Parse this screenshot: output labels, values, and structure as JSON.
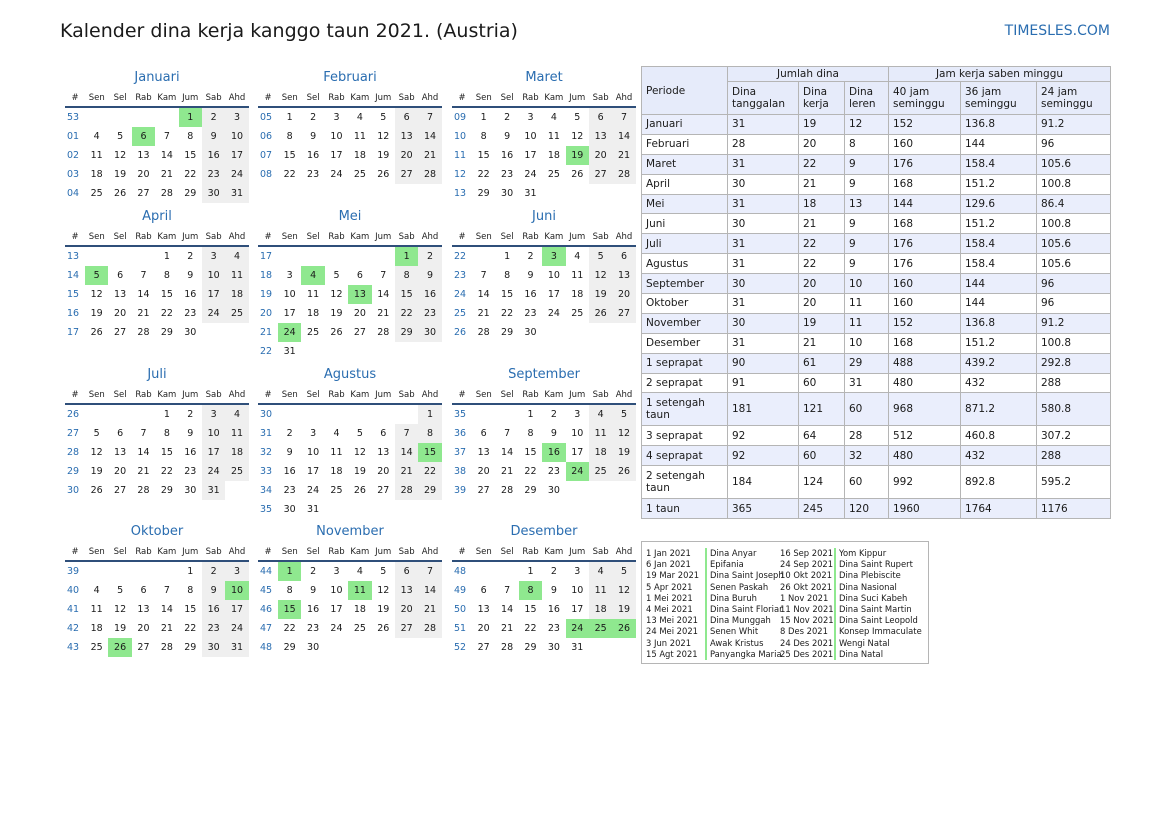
{
  "title": "Kalender dina kerja kanggo taun 2021. (Austria)",
  "brand": "TIMESLES.COM",
  "dow": [
    "#",
    "Sen",
    "Sel",
    "Rab",
    "Kam",
    "Jum",
    "Sab",
    "Ahd"
  ],
  "colors": {
    "holiday": "#8fe88f",
    "weekend": "#efefef",
    "accent": "#2a6db0"
  },
  "months": [
    {
      "name": "Januari",
      "weeks": [
        {
          "wk": "53",
          "days": [
            "",
            "",
            "",
            "",
            "1",
            "2",
            "3"
          ],
          "hol": [
            4
          ]
        },
        {
          "wk": "01",
          "days": [
            "4",
            "5",
            "6",
            "7",
            "8",
            "9",
            "10"
          ],
          "hol": [
            2
          ]
        },
        {
          "wk": "02",
          "days": [
            "11",
            "12",
            "13",
            "14",
            "15",
            "16",
            "17"
          ],
          "hol": []
        },
        {
          "wk": "03",
          "days": [
            "18",
            "19",
            "20",
            "21",
            "22",
            "23",
            "24"
          ],
          "hol": []
        },
        {
          "wk": "04",
          "days": [
            "25",
            "26",
            "27",
            "28",
            "29",
            "30",
            "31"
          ],
          "hol": []
        }
      ]
    },
    {
      "name": "Februari",
      "weeks": [
        {
          "wk": "05",
          "days": [
            "1",
            "2",
            "3",
            "4",
            "5",
            "6",
            "7"
          ],
          "hol": []
        },
        {
          "wk": "06",
          "days": [
            "8",
            "9",
            "10",
            "11",
            "12",
            "13",
            "14"
          ],
          "hol": []
        },
        {
          "wk": "07",
          "days": [
            "15",
            "16",
            "17",
            "18",
            "19",
            "20",
            "21"
          ],
          "hol": []
        },
        {
          "wk": "08",
          "days": [
            "22",
            "23",
            "24",
            "25",
            "26",
            "27",
            "28"
          ],
          "hol": []
        }
      ]
    },
    {
      "name": "Maret",
      "weeks": [
        {
          "wk": "09",
          "days": [
            "1",
            "2",
            "3",
            "4",
            "5",
            "6",
            "7"
          ],
          "hol": []
        },
        {
          "wk": "10",
          "days": [
            "8",
            "9",
            "10",
            "11",
            "12",
            "13",
            "14"
          ],
          "hol": []
        },
        {
          "wk": "11",
          "days": [
            "15",
            "16",
            "17",
            "18",
            "19",
            "20",
            "21"
          ],
          "hol": [
            4
          ]
        },
        {
          "wk": "12",
          "days": [
            "22",
            "23",
            "24",
            "25",
            "26",
            "27",
            "28"
          ],
          "hol": []
        },
        {
          "wk": "13",
          "days": [
            "29",
            "30",
            "31",
            "",
            "",
            "",
            ""
          ],
          "hol": []
        }
      ]
    },
    {
      "name": "April",
      "weeks": [
        {
          "wk": "13",
          "days": [
            "",
            "",
            "",
            "1",
            "2",
            "3",
            "4"
          ],
          "hol": []
        },
        {
          "wk": "14",
          "days": [
            "5",
            "6",
            "7",
            "8",
            "9",
            "10",
            "11"
          ],
          "hol": [
            0
          ]
        },
        {
          "wk": "15",
          "days": [
            "12",
            "13",
            "14",
            "15",
            "16",
            "17",
            "18"
          ],
          "hol": []
        },
        {
          "wk": "16",
          "days": [
            "19",
            "20",
            "21",
            "22",
            "23",
            "24",
            "25"
          ],
          "hol": []
        },
        {
          "wk": "17",
          "days": [
            "26",
            "27",
            "28",
            "29",
            "30",
            "",
            ""
          ],
          "hol": []
        }
      ]
    },
    {
      "name": "Mei",
      "weeks": [
        {
          "wk": "17",
          "days": [
            "",
            "",
            "",
            "",
            "",
            "1",
            "2"
          ],
          "hol": [
            5
          ]
        },
        {
          "wk": "18",
          "days": [
            "3",
            "4",
            "5",
            "6",
            "7",
            "8",
            "9"
          ],
          "hol": [
            1
          ]
        },
        {
          "wk": "19",
          "days": [
            "10",
            "11",
            "12",
            "13",
            "14",
            "15",
            "16"
          ],
          "hol": [
            3
          ]
        },
        {
          "wk": "20",
          "days": [
            "17",
            "18",
            "19",
            "20",
            "21",
            "22",
            "23"
          ],
          "hol": []
        },
        {
          "wk": "21",
          "days": [
            "24",
            "25",
            "26",
            "27",
            "28",
            "29",
            "30"
          ],
          "hol": [
            0
          ]
        },
        {
          "wk": "22",
          "days": [
            "31",
            "",
            "",
            "",
            "",
            "",
            ""
          ],
          "hol": []
        }
      ]
    },
    {
      "name": "Juni",
      "weeks": [
        {
          "wk": "22",
          "days": [
            "",
            "1",
            "2",
            "3",
            "4",
            "5",
            "6"
          ],
          "hol": [
            3
          ]
        },
        {
          "wk": "23",
          "days": [
            "7",
            "8",
            "9",
            "10",
            "11",
            "12",
            "13"
          ],
          "hol": []
        },
        {
          "wk": "24",
          "days": [
            "14",
            "15",
            "16",
            "17",
            "18",
            "19",
            "20"
          ],
          "hol": []
        },
        {
          "wk": "25",
          "days": [
            "21",
            "22",
            "23",
            "24",
            "25",
            "26",
            "27"
          ],
          "hol": []
        },
        {
          "wk": "26",
          "days": [
            "28",
            "29",
            "30",
            "",
            "",
            "",
            ""
          ],
          "hol": []
        }
      ]
    },
    {
      "name": "Juli",
      "weeks": [
        {
          "wk": "26",
          "days": [
            "",
            "",
            "",
            "1",
            "2",
            "3",
            "4"
          ],
          "hol": []
        },
        {
          "wk": "27",
          "days": [
            "5",
            "6",
            "7",
            "8",
            "9",
            "10",
            "11"
          ],
          "hol": []
        },
        {
          "wk": "28",
          "days": [
            "12",
            "13",
            "14",
            "15",
            "16",
            "17",
            "18"
          ],
          "hol": []
        },
        {
          "wk": "29",
          "days": [
            "19",
            "20",
            "21",
            "22",
            "23",
            "24",
            "25"
          ],
          "hol": []
        },
        {
          "wk": "30",
          "days": [
            "26",
            "27",
            "28",
            "29",
            "30",
            "31",
            ""
          ],
          "hol": []
        }
      ]
    },
    {
      "name": "Agustus",
      "weeks": [
        {
          "wk": "30",
          "days": [
            "",
            "",
            "",
            "",
            "",
            "",
            "1"
          ],
          "hol": []
        },
        {
          "wk": "31",
          "days": [
            "2",
            "3",
            "4",
            "5",
            "6",
            "7",
            "8"
          ],
          "hol": []
        },
        {
          "wk": "32",
          "days": [
            "9",
            "10",
            "11",
            "12",
            "13",
            "14",
            "15"
          ],
          "hol": [
            6
          ]
        },
        {
          "wk": "33",
          "days": [
            "16",
            "17",
            "18",
            "19",
            "20",
            "21",
            "22"
          ],
          "hol": []
        },
        {
          "wk": "34",
          "days": [
            "23",
            "24",
            "25",
            "26",
            "27",
            "28",
            "29"
          ],
          "hol": []
        },
        {
          "wk": "35",
          "days": [
            "30",
            "31",
            "",
            "",
            "",
            "",
            ""
          ],
          "hol": []
        }
      ]
    },
    {
      "name": "September",
      "weeks": [
        {
          "wk": "35",
          "days": [
            "",
            "",
            "1",
            "2",
            "3",
            "4",
            "5"
          ],
          "hol": []
        },
        {
          "wk": "36",
          "days": [
            "6",
            "7",
            "8",
            "9",
            "10",
            "11",
            "12"
          ],
          "hol": []
        },
        {
          "wk": "37",
          "days": [
            "13",
            "14",
            "15",
            "16",
            "17",
            "18",
            "19"
          ],
          "hol": [
            3
          ]
        },
        {
          "wk": "38",
          "days": [
            "20",
            "21",
            "22",
            "23",
            "24",
            "25",
            "26"
          ],
          "hol": [
            4
          ]
        },
        {
          "wk": "39",
          "days": [
            "27",
            "28",
            "29",
            "30",
            "",
            "",
            ""
          ],
          "hol": []
        }
      ]
    },
    {
      "name": "Oktober",
      "weeks": [
        {
          "wk": "39",
          "days": [
            "",
            "",
            "",
            "",
            "1",
            "2",
            "3"
          ],
          "hol": []
        },
        {
          "wk": "40",
          "days": [
            "4",
            "5",
            "6",
            "7",
            "8",
            "9",
            "10"
          ],
          "hol": [
            6
          ]
        },
        {
          "wk": "41",
          "days": [
            "11",
            "12",
            "13",
            "14",
            "15",
            "16",
            "17"
          ],
          "hol": []
        },
        {
          "wk": "42",
          "days": [
            "18",
            "19",
            "20",
            "21",
            "22",
            "23",
            "24"
          ],
          "hol": []
        },
        {
          "wk": "43",
          "days": [
            "25",
            "26",
            "27",
            "28",
            "29",
            "30",
            "31"
          ],
          "hol": [
            1
          ]
        }
      ]
    },
    {
      "name": "November",
      "weeks": [
        {
          "wk": "44",
          "days": [
            "1",
            "2",
            "3",
            "4",
            "5",
            "6",
            "7"
          ],
          "hol": [
            0
          ]
        },
        {
          "wk": "45",
          "days": [
            "8",
            "9",
            "10",
            "11",
            "12",
            "13",
            "14"
          ],
          "hol": [
            3
          ]
        },
        {
          "wk": "46",
          "days": [
            "15",
            "16",
            "17",
            "18",
            "19",
            "20",
            "21"
          ],
          "hol": [
            0
          ]
        },
        {
          "wk": "47",
          "days": [
            "22",
            "23",
            "24",
            "25",
            "26",
            "27",
            "28"
          ],
          "hol": []
        },
        {
          "wk": "48",
          "days": [
            "29",
            "30",
            "",
            "",
            "",
            "",
            ""
          ],
          "hol": []
        }
      ]
    },
    {
      "name": "Desember",
      "weeks": [
        {
          "wk": "48",
          "days": [
            "",
            "",
            "1",
            "2",
            "3",
            "4",
            "5"
          ],
          "hol": []
        },
        {
          "wk": "49",
          "days": [
            "6",
            "7",
            "8",
            "9",
            "10",
            "11",
            "12"
          ],
          "hol": [
            2
          ]
        },
        {
          "wk": "50",
          "days": [
            "13",
            "14",
            "15",
            "16",
            "17",
            "18",
            "19"
          ],
          "hol": []
        },
        {
          "wk": "51",
          "days": [
            "20",
            "21",
            "22",
            "23",
            "24",
            "25",
            "26"
          ],
          "hol": [
            4,
            5,
            6
          ]
        },
        {
          "wk": "52",
          "days": [
            "27",
            "28",
            "29",
            "30",
            "31",
            "",
            ""
          ],
          "hol": []
        }
      ]
    }
  ],
  "summary": {
    "col_periode": "Periode",
    "group_days": "Jumlah dina",
    "group_hours": "Jam kerja saben minggu",
    "sub": [
      "Dina tanggalan",
      "Dina kerja",
      "Dina leren",
      "40 jam seminggu",
      "36 jam seminggu",
      "24 jam seminggu"
    ],
    "rows": [
      [
        "Januari",
        "31",
        "19",
        "12",
        "152",
        "136.8",
        "91.2"
      ],
      [
        "Februari",
        "28",
        "20",
        "8",
        "160",
        "144",
        "96"
      ],
      [
        "Maret",
        "31",
        "22",
        "9",
        "176",
        "158.4",
        "105.6"
      ],
      [
        "April",
        "30",
        "21",
        "9",
        "168",
        "151.2",
        "100.8"
      ],
      [
        "Mei",
        "31",
        "18",
        "13",
        "144",
        "129.6",
        "86.4"
      ],
      [
        "Juni",
        "30",
        "21",
        "9",
        "168",
        "151.2",
        "100.8"
      ],
      [
        "Juli",
        "31",
        "22",
        "9",
        "176",
        "158.4",
        "105.6"
      ],
      [
        "Agustus",
        "31",
        "22",
        "9",
        "176",
        "158.4",
        "105.6"
      ],
      [
        "September",
        "30",
        "20",
        "10",
        "160",
        "144",
        "96"
      ],
      [
        "Oktober",
        "31",
        "20",
        "11",
        "160",
        "144",
        "96"
      ],
      [
        "November",
        "30",
        "19",
        "11",
        "152",
        "136.8",
        "91.2"
      ],
      [
        "Desember",
        "31",
        "21",
        "10",
        "168",
        "151.2",
        "100.8"
      ],
      [
        "1 seprapat",
        "90",
        "61",
        "29",
        "488",
        "439.2",
        "292.8"
      ],
      [
        "2 seprapat",
        "91",
        "60",
        "31",
        "480",
        "432",
        "288"
      ],
      [
        "1 setengah taun",
        "181",
        "121",
        "60",
        "968",
        "871.2",
        "580.8"
      ],
      [
        "3 seprapat",
        "92",
        "64",
        "28",
        "512",
        "460.8",
        "307.2"
      ],
      [
        "4 seprapat",
        "92",
        "60",
        "32",
        "480",
        "432",
        "288"
      ],
      [
        "2 setengah taun",
        "184",
        "124",
        "60",
        "992",
        "892.8",
        "595.2"
      ],
      [
        "1 taun",
        "365",
        "245",
        "120",
        "1960",
        "1764",
        "1176"
      ]
    ]
  },
  "holidays": [
    {
      "date": "1 Jan 2021",
      "name": "Dina Anyar"
    },
    {
      "date": "6 Jan 2021",
      "name": "Epifania"
    },
    {
      "date": "19 Mar 2021",
      "name": "Dina Saint Joseph"
    },
    {
      "date": "5 Apr 2021",
      "name": "Senen Paskah"
    },
    {
      "date": "1 Mei 2021",
      "name": "Dina Buruh"
    },
    {
      "date": "4 Mei 2021",
      "name": "Dina Saint Florian"
    },
    {
      "date": "13 Mei 2021",
      "name": "Dina Munggah"
    },
    {
      "date": "24 Mei 2021",
      "name": "Senen Whit"
    },
    {
      "date": "3 Jun 2021",
      "name": "Awak Kristus"
    },
    {
      "date": "15 Agt 2021",
      "name": "Panyangka Maria"
    },
    {
      "date": "16 Sep 2021",
      "name": "Yom Kippur"
    },
    {
      "date": "24 Sep 2021",
      "name": "Dina Saint Rupert"
    },
    {
      "date": "10 Okt 2021",
      "name": "Dina Plebiscite"
    },
    {
      "date": "26 Okt 2021",
      "name": "Dina Nasional"
    },
    {
      "date": "1 Nov 2021",
      "name": "Dina Suci Kabeh"
    },
    {
      "date": "11 Nov 2021",
      "name": "Dina Saint Martin"
    },
    {
      "date": "15 Nov 2021",
      "name": "Dina Saint Leopold"
    },
    {
      "date": "8 Des 2021",
      "name": "Konsep Immaculate"
    },
    {
      "date": "24 Des 2021",
      "name": "Wengi Natal"
    },
    {
      "date": "25 Des 2021",
      "name": "Dina Natal"
    }
  ]
}
